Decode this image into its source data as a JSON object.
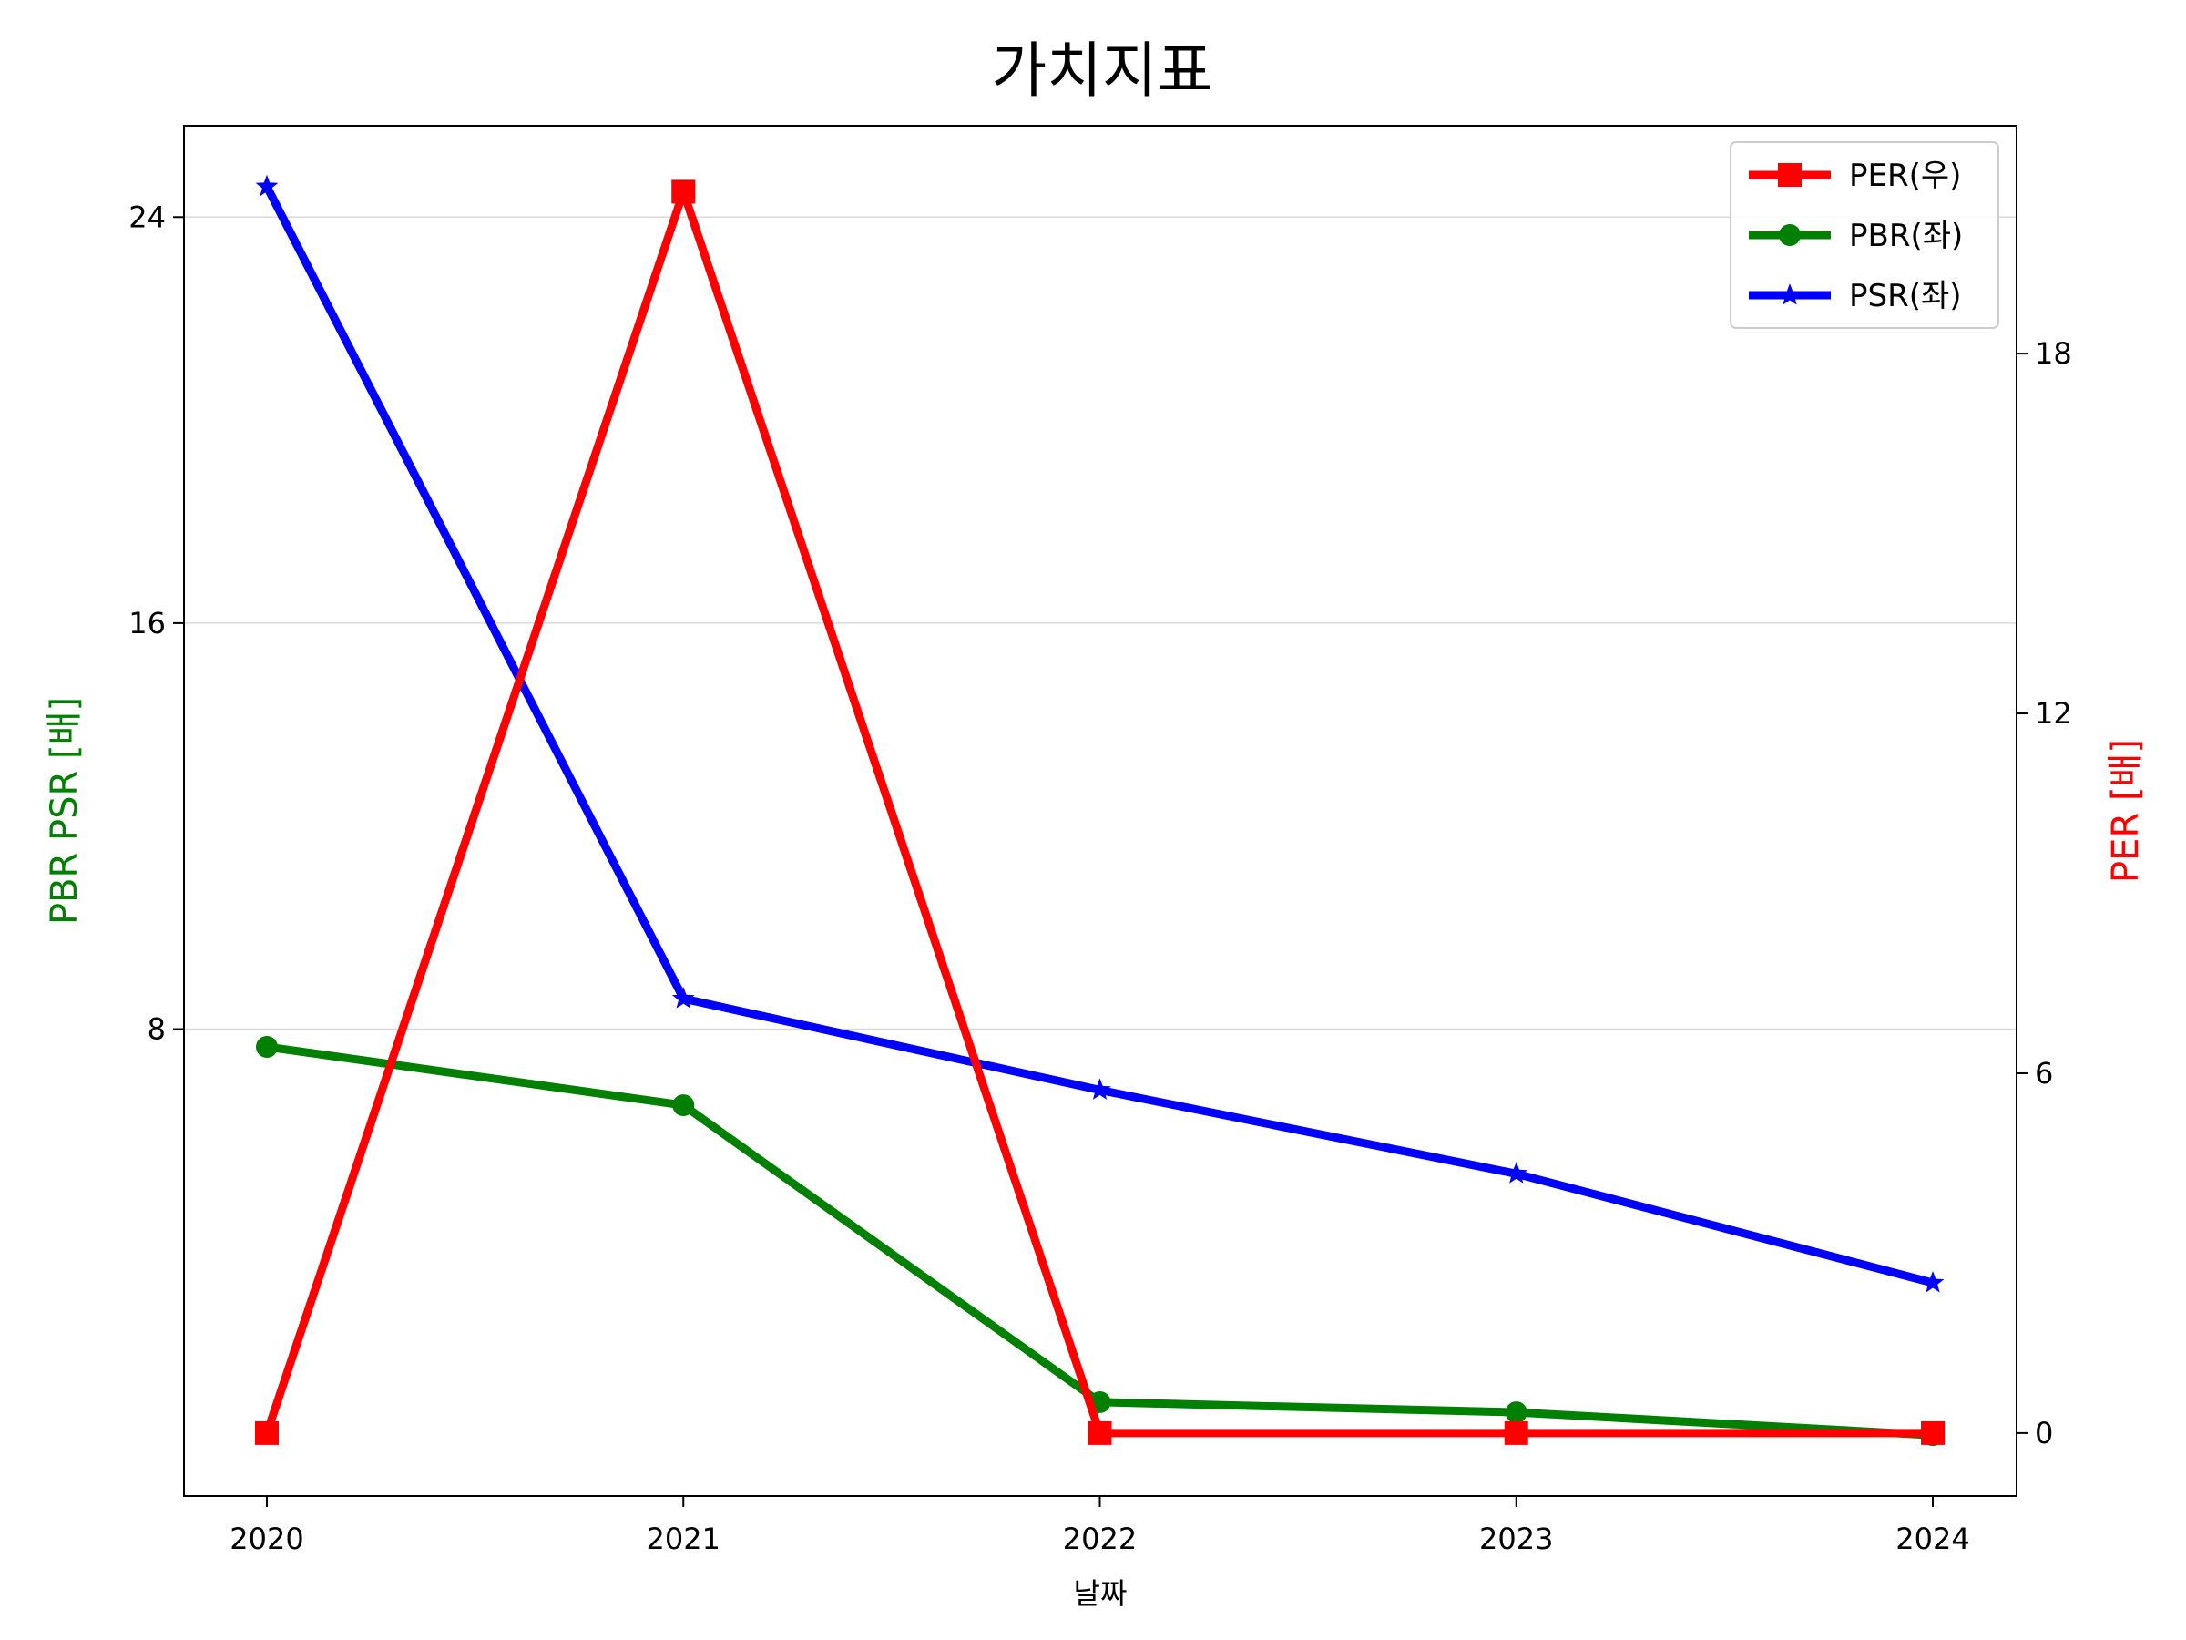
{
  "chart_data": {
    "type": "line",
    "title": "가치지표",
    "xlabel": "날짜",
    "ylabel_left": "PBR PSR [배]",
    "ylabel_right": "PER [배]",
    "x": [
      "2020",
      "2021",
      "2022",
      "2023",
      "2024"
    ],
    "y_left_range": [
      -1.2,
      25.8
    ],
    "y_left_ticks": [
      "8",
      "16",
      "24"
    ],
    "y_right_range": [
      -1.05,
      21.8
    ],
    "y_right_ticks": [
      "0",
      "6",
      "12",
      "18"
    ],
    "grid": "horizontal",
    "legend_position": "top-right",
    "series": [
      {
        "name": "PER(우)",
        "axis": "right",
        "color": "#ff0000",
        "marker": "square",
        "values": [
          0,
          20.7,
          0,
          0,
          0
        ]
      },
      {
        "name": "PBR(좌)",
        "axis": "left",
        "color": "#008000",
        "marker": "circle",
        "values": [
          7.65,
          6.5,
          0.65,
          0.45,
          0
        ]
      },
      {
        "name": "PSR(좌)",
        "axis": "left",
        "color": "#0000ff",
        "marker": "star",
        "values": [
          24.6,
          8.6,
          6.8,
          5.15,
          3.0
        ]
      }
    ],
    "colors": {
      "left_axis_label": "#008000",
      "right_axis_label": "#ff0000",
      "grid": "#d9d9d9"
    }
  }
}
